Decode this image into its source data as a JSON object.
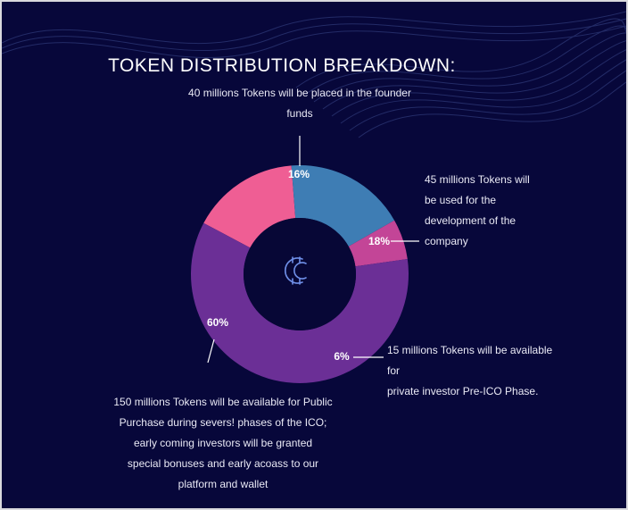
{
  "title": "TOKEN DISTRIBUTION BREAKDOWN:",
  "colors": {
    "background": "#07073a",
    "pink": "#ef5e94",
    "blue": "#3e7db4",
    "magenta": "#c34597",
    "purple": "#6b2f96",
    "hole": "#070736",
    "logo": "#6f8fe8"
  },
  "center_icon": "crypto-coin-icon",
  "annotations": {
    "founder": {
      "line1": "40 millions Tokens will be placed in the founder",
      "line2": "funds"
    },
    "development": {
      "line1": "45 millions Tokens will",
      "line2": "be used for the",
      "line3": "development of the",
      "line4": "company"
    },
    "private": {
      "line1": "15 millions Tokens will be available for",
      "line2": "private investor Pre-ICO Phase."
    },
    "public": {
      "line1": "150 millions Tokens will be available for Public",
      "line2": "Purchase during severs! phases of the ICO;",
      "line3": "early coming investors will be granted",
      "line4": "special bonuses and early acoass to our",
      "line5": "platform and wallet"
    }
  },
  "chart_data": {
    "type": "pie",
    "donut": true,
    "title": "TOKEN DISTRIBUTION BREAKDOWN:",
    "slices": [
      {
        "label": "16%",
        "value": 40,
        "color": "#ef5e94"
      },
      {
        "label": "18%",
        "value": 45,
        "color": "#3e7db4"
      },
      {
        "label": "6%",
        "value": 15,
        "color": "#c34597"
      },
      {
        "label": "60%",
        "value": 150,
        "color": "#6b2f96"
      }
    ],
    "legend": "none"
  }
}
